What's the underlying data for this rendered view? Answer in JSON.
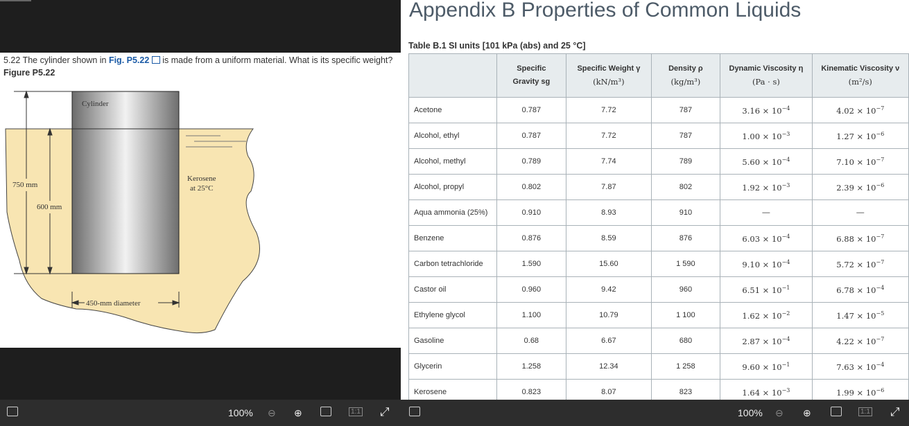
{
  "problem": {
    "text_before": "5.22 The cylinder shown in ",
    "link": "Fig. P5.22",
    "text_after": " is made from a uniform material. What is its specific weight?",
    "figure_label": "Figure P5.22"
  },
  "figure": {
    "cylinder": "Cylinder",
    "liquid": "Kerosene",
    "liquid_temp": "at 25°C",
    "height_total": "750 mm",
    "height_submerged": "600 mm",
    "diameter": "450-mm diameter"
  },
  "appendix": {
    "title": "Appendix B Properties of Common Liquids",
    "caption": "Table B.1 SI units [101 kPa (abs) and 25 °C]",
    "header": [
      [
        "Specific",
        "Gravity sg"
      ],
      [
        "Specific Weight γ",
        "(kN/m³)"
      ],
      [
        "Density ρ",
        "(kg/m³)"
      ],
      [
        "Dynamic Viscosity η",
        "(Pa · s)"
      ],
      [
        "Kinematic Viscosity ν",
        "(m²/s)"
      ]
    ],
    "rows": [
      [
        "Acetone",
        "0.787",
        "7.72",
        "787",
        {
          "base": "3.16 × 10",
          "exp": "−4"
        },
        {
          "base": "4.02 × 10",
          "exp": "−7"
        }
      ],
      [
        "Alcohol, ethyl",
        "0.787",
        "7.72",
        "787",
        {
          "base": "1.00 × 10",
          "exp": "−3"
        },
        {
          "base": "1.27 × 10",
          "exp": "−6"
        }
      ],
      [
        "Alcohol, methyl",
        "0.789",
        "7.74",
        "789",
        {
          "base": "5.60 × 10",
          "exp": "−4"
        },
        {
          "base": "7.10 × 10",
          "exp": "−7"
        }
      ],
      [
        "Alcohol, propyl",
        "0.802",
        "7.87",
        "802",
        {
          "base": "1.92 × 10",
          "exp": "−3"
        },
        {
          "base": "2.39 × 10",
          "exp": "−6"
        }
      ],
      [
        "Aqua ammonia (25%)",
        "0.910",
        "8.93",
        "910",
        "—",
        "—"
      ],
      [
        "Benzene",
        "0.876",
        "8.59",
        "876",
        {
          "base": "6.03 × 10",
          "exp": "−4"
        },
        {
          "base": "6.88 × 10",
          "exp": "−7"
        }
      ],
      [
        "Carbon tetrachloride",
        "1.590",
        "15.60",
        "1 590",
        {
          "base": "9.10 × 10",
          "exp": "−4"
        },
        {
          "base": "5.72 × 10",
          "exp": "−7"
        }
      ],
      [
        "Castor oil",
        "0.960",
        "9.42",
        "960",
        {
          "base": "6.51 × 10",
          "exp": "−1"
        },
        {
          "base": "6.78 × 10",
          "exp": "−4"
        }
      ],
      [
        "Ethylene glycol",
        "1.100",
        "10.79",
        "1 100",
        {
          "base": "1.62 × 10",
          "exp": "−2"
        },
        {
          "base": "1.47 × 10",
          "exp": "−5"
        }
      ],
      [
        "Gasoline",
        "0.68",
        "6.67",
        "680",
        {
          "base": "2.87 × 10",
          "exp": "−4"
        },
        {
          "base": "4.22 × 10",
          "exp": "−7"
        }
      ],
      [
        "Glycerin",
        "1.258",
        "12.34",
        "1 258",
        {
          "base": "9.60 × 10",
          "exp": "−1"
        },
        {
          "base": "7.63 × 10",
          "exp": "−4"
        }
      ],
      [
        "Kerosene",
        "0.823",
        "8.07",
        "823",
        {
          "base": "1.64 × 10",
          "exp": "−3"
        },
        {
          "base": "1.99 × 10",
          "exp": "−6"
        }
      ]
    ]
  },
  "toolbar_left": {
    "zoom": "100%",
    "actual": "1:1"
  },
  "toolbar_right": {
    "zoom": "100%",
    "actual": "1:1"
  }
}
